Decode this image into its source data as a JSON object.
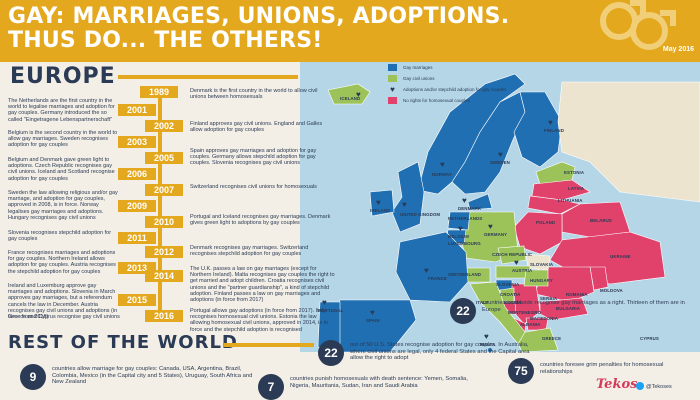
{
  "header": {
    "title_line1": "GAY: MARRIAGES, UNIONS, ADOPTIONS.",
    "title_line2": "THUS DO... THE OTHERS!",
    "date": "May 2016",
    "symbol": "double-male-symbol-icon"
  },
  "europe": {
    "heading": "EUROPE",
    "timeline": [
      {
        "year": "1989",
        "left": "",
        "right": "Denmark is the first country in the world to allow civil unions between homosexuals"
      },
      {
        "year": "2001",
        "left": "The Netherlands are the first country in the world to legalise marriages and adoption for gay couples. Germany introduced the so called \"Eingetragene Lebenspartnerschaft\"",
        "right": ""
      },
      {
        "year": "2002",
        "left": "",
        "right": "Finland approves gay civil unions. England and Galles allow adoption for gay couples"
      },
      {
        "year": "2003",
        "left": "Belgium is the second country in the world to allow gay marriages. Sweden recognises adoption for gay couples",
        "right": ""
      },
      {
        "year": "2005",
        "left": "",
        "right": "Spain approves gay marriages and adoption for gay couples. Germany allows stepchild adoption for gay couples. Slovenia recognises gay civil unions"
      },
      {
        "year": "2006",
        "left": "Belgium and Denmark gave green light to adoptions. Czech Republic recognises gay civil unions. Iceland and Scotland recognise adoption for gay couples",
        "right": ""
      },
      {
        "year": "2007",
        "left": "",
        "right": "Switzerland recognises civil unions for homosexuals"
      },
      {
        "year": "2009",
        "left": "Sweden the law allowing religious and/or gay marriage, and adoption for gay couples, approved in 2008, is in force. Norway legalises gay marriages and adoptions. Hungary recognises gay civil unions",
        "right": ""
      },
      {
        "year": "2010",
        "left": "",
        "right": "Portugal and Iceland recognises gay marriages. Denmark gives green light to adoptions by gay couples"
      },
      {
        "year": "2011",
        "left": "Slovenia recognises stepchild adoption for gay couples",
        "right": ""
      },
      {
        "year": "2012",
        "left": "",
        "right": "Denmark recognises gay marriages. Switzerland recognises stepchild adoption for gay couples"
      },
      {
        "year": "2013",
        "left": "France recognises marriages and adoptions for gay couples. Northern Ireland allows adoption for gay couples. Austria recognises the stepchild adoption for gay couples",
        "right": ""
      },
      {
        "year": "2014",
        "left": "",
        "right": "The U.K. passes a law on gay marriages (except for Northern Ireland). Malta recognises gay couples the right to get married and adopt children. Croatia recognises civil unions and the \"partner guardianship\", a kind of stepchild adoption. Finland passes a law on gay marriages and adoptions (in force from 2017)"
      },
      {
        "year": "2015",
        "left": "Ireland and Luxemburg approve gay marriages and adoptions. Slovenia in March approves gay marriages, but a referendum cancels the law in December. Austria recognises gay civil unions and adoptions (in force from 2016)",
        "right": ""
      },
      {
        "year": "2016",
        "left": "Greece and Cyprus recognise gay civil unions",
        "right": "Portugal allows gay adoptions (in force from 2017). Italy recognises homosexual civil unions. Estonia the law allowing homosexual civil unions, approved in 2014, is in force and the stepchild adoption is recognised"
      }
    ]
  },
  "legend": [
    {
      "label": "Gay marriages",
      "color": "#1f6fb2"
    },
    {
      "label": "Gay civil unions",
      "color": "#9cc35a"
    },
    {
      "label": "Adoptions and/or stepchild adoption for gay couples",
      "icon": "heart-icon"
    },
    {
      "label": "No rights for homosexual couples",
      "color": "#e0426c"
    }
  ],
  "map": {
    "colors": {
      "marriage": "#1f6fb2",
      "union": "#9cc35a",
      "none": "#e0426c",
      "neutral": "#ede4cf",
      "sea": "#b5d6e7"
    },
    "countries": [
      "ICELAND",
      "NORWAY",
      "SWEDEN",
      "FINLAND",
      "ESTONIA",
      "LATVIA",
      "LITHUANIA",
      "DENMARK",
      "IRELAND",
      "UNITED KINGDOM",
      "NETHERLANDS",
      "BELGIUM",
      "LUXEMBOURG",
      "GERMANY",
      "POLAND",
      "BELARUS",
      "UKRAINE",
      "MOLDOVA",
      "ROMANIA",
      "FRANCE",
      "SWITZERLAND",
      "AUSTRIA",
      "CZECH REPUBLIC",
      "SLOVAKIA",
      "HUNGARY",
      "SLOVENIA",
      "CROATIA",
      "BOSNIA",
      "SERBIA",
      "MONTENEGRO",
      "ALBANIA",
      "MACEDONIA",
      "BULGARIA",
      "GREECE",
      "ITALY",
      "SPAIN",
      "PORTUGAL",
      "MALTA",
      "CYPRUS"
    ]
  },
  "stats": {
    "europe_num": "22",
    "europe_text": "countries worldwide recognise gay marriages as a right. Thirteen of them are in Europe"
  },
  "rest": {
    "heading": "REST OF THE WORLD",
    "items": [
      {
        "num": "9",
        "text": "countries allow marriage for gay couples: Canada, USA, Argentina, Brazil, Colombia, Mexico (in the Capital city and 5 States), Uruguay, South Africa and New Zealand"
      },
      {
        "num": "22",
        "text": "out of 50 U.S. States recognise adoption for gay couples. In Australia, where civil unions are legal, only 4 federal States and the Capital area allow the right to adopt"
      },
      {
        "num": "7",
        "text": "countries punish homosexuals with death sentence: Yemen, Somalia, Nigeria, Mauritania, Sudan, Iran and Saudi Arabia"
      },
      {
        "num": "75",
        "text": "countries foresee grim penalties for homosexual relationships"
      }
    ]
  },
  "footer": {
    "brand": "Tekos",
    "twitter": "@Tekoses"
  }
}
